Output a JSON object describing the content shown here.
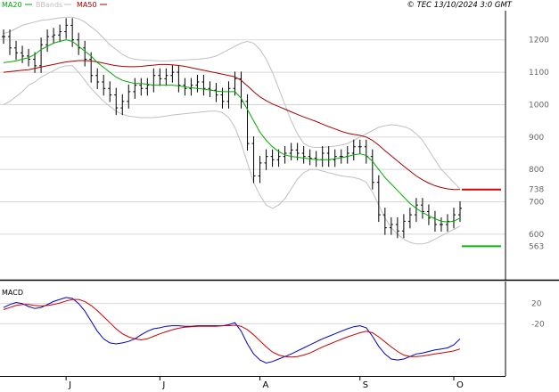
{
  "legend": {
    "ma20": "MA20",
    "bbands": "BBands",
    "ma50": "MA50",
    "copyright": "© TEC 13/10/2024 3:0 GMT"
  },
  "macd_label": "MACD",
  "colors": {
    "ma20": "#00aa00",
    "bbands": "#c0c0c0",
    "ma50": "#aa0000",
    "price": "#000000",
    "macd": "#0000cc",
    "signal": "#cc0000",
    "grid": "#d8d8d8",
    "axis_text": "#666666",
    "marker_red": "#dd0000",
    "marker_green": "#00bb00"
  },
  "chart_data": [
    {
      "type": "line",
      "ylim": [
        465,
        1290
      ],
      "y_ticks": [
        "1200",
        "1100",
        "1000",
        "900",
        "800",
        "700",
        "600"
      ],
      "y_tick_values": [
        1200,
        1100,
        1000,
        900,
        800,
        700,
        600
      ],
      "x_ticks": [
        "J",
        "J",
        "A",
        "S",
        "O"
      ],
      "x_tick_index": [
        10,
        25,
        41,
        57,
        72
      ],
      "series": [
        {
          "key": "price",
          "values": [
            1210,
            1175,
            1160,
            1150,
            1140,
            1120,
            1185,
            1210,
            1215,
            1225,
            1245,
            1200,
            1175,
            1140,
            1090,
            1070,
            1050,
            1030,
            990,
            1010,
            1040,
            1060,
            1050,
            1060,
            1090,
            1080,
            1090,
            1100,
            1060,
            1050,
            1060,
            1070,
            1050,
            1045,
            1030,
            1010,
            1050,
            1080,
            1010,
            880,
            780,
            820,
            840,
            830,
            840,
            850,
            860,
            850,
            840,
            835,
            830,
            850,
            830,
            840,
            840,
            850,
            870,
            870,
            840,
            760,
            660,
            620,
            630,
            610,
            640,
            660,
            690,
            670,
            650,
            630,
            630,
            640,
            660,
            680
          ]
        },
        {
          "key": "ma20",
          "values": [
            1130,
            1132,
            1135,
            1140,
            1145,
            1155,
            1170,
            1180,
            1190,
            1195,
            1200,
            1195,
            1180,
            1165,
            1150,
            1130,
            1115,
            1100,
            1085,
            1075,
            1070,
            1065,
            1065,
            1063,
            1060,
            1060,
            1060,
            1060,
            1058,
            1055,
            1052,
            1050,
            1048,
            1045,
            1042,
            1040,
            1040,
            1040,
            1020,
            985,
            950,
            915,
            890,
            870,
            855,
            845,
            840,
            838,
            835,
            833,
            830,
            830,
            830,
            833,
            836,
            840,
            845,
            848,
            843,
            825,
            800,
            775,
            755,
            735,
            715,
            695,
            680,
            667,
            657,
            648,
            640,
            638,
            640,
            650
          ]
        },
        {
          "key": "ma50",
          "values": [
            1100,
            1102,
            1104,
            1106,
            1108,
            1112,
            1116,
            1120,
            1124,
            1128,
            1132,
            1134,
            1136,
            1136,
            1135,
            1132,
            1128,
            1124,
            1120,
            1118,
            1117,
            1117,
            1118,
            1120,
            1122,
            1124,
            1124,
            1123,
            1121,
            1118,
            1114,
            1110,
            1106,
            1102,
            1098,
            1094,
            1090,
            1086,
            1075,
            1058,
            1040,
            1024,
            1012,
            1002,
            994,
            986,
            978,
            970,
            962,
            955,
            948,
            940,
            932,
            925,
            918,
            912,
            908,
            905,
            900,
            890,
            875,
            858,
            842,
            826,
            810,
            795,
            780,
            768,
            758,
            750,
            744,
            740,
            738,
            738
          ]
        },
        {
          "key": "bb_upper",
          "values": [
            1220,
            1225,
            1235,
            1245,
            1250,
            1255,
            1260,
            1262,
            1265,
            1268,
            1270,
            1270,
            1265,
            1255,
            1240,
            1225,
            1205,
            1185,
            1170,
            1155,
            1145,
            1140,
            1138,
            1137,
            1136,
            1135,
            1135,
            1136,
            1137,
            1138,
            1139,
            1140,
            1142,
            1145,
            1150,
            1160,
            1170,
            1180,
            1190,
            1195,
            1190,
            1170,
            1140,
            1100,
            1050,
            1000,
            950,
            910,
            880,
            870,
            868,
            868,
            870,
            872,
            875,
            880,
            890,
            900,
            910,
            920,
            930,
            935,
            938,
            936,
            932,
            925,
            910,
            890,
            860,
            830,
            800,
            780,
            760,
            740
          ]
        },
        {
          "key": "bb_lower",
          "values": [
            1000,
            1010,
            1025,
            1040,
            1060,
            1070,
            1085,
            1095,
            1105,
            1115,
            1120,
            1120,
            1100,
            1075,
            1050,
            1030,
            1010,
            995,
            980,
            970,
            965,
            962,
            960,
            960,
            960,
            962,
            965,
            968,
            970,
            972,
            974,
            976,
            978,
            980,
            980,
            975,
            960,
            930,
            880,
            820,
            760,
            720,
            690,
            680,
            690,
            710,
            740,
            770,
            790,
            800,
            800,
            795,
            790,
            785,
            780,
            778,
            775,
            770,
            760,
            730,
            690,
            650,
            620,
            600,
            585,
            575,
            570,
            570,
            575,
            585,
            595,
            605,
            615,
            625
          ]
        },
        {
          "key": "macd",
          "values": [
            12,
            18,
            22,
            20,
            14,
            10,
            12,
            18,
            24,
            28,
            32,
            30,
            20,
            5,
            -15,
            -35,
            -50,
            -58,
            -60,
            -58,
            -55,
            -50,
            -42,
            -35,
            -30,
            -28,
            -25,
            -24,
            -24,
            -25,
            -25,
            -24,
            -24,
            -24,
            -24,
            -24,
            -22,
            -18,
            -35,
            -60,
            -80,
            -92,
            -98,
            -95,
            -90,
            -85,
            -80,
            -74,
            -68,
            -62,
            -56,
            -50,
            -45,
            -40,
            -35,
            -30,
            -26,
            -24,
            -28,
            -45,
            -65,
            -80,
            -90,
            -92,
            -90,
            -85,
            -80,
            -78,
            -75,
            -72,
            -70,
            -68,
            -62,
            -50
          ]
        },
        {
          "key": "signal",
          "values": [
            8,
            12,
            16,
            18,
            18,
            16,
            15,
            16,
            18,
            21,
            25,
            28,
            28,
            24,
            16,
            6,
            -6,
            -18,
            -30,
            -40,
            -46,
            -50,
            -52,
            -50,
            -45,
            -40,
            -36,
            -32,
            -29,
            -27,
            -26,
            -25,
            -25,
            -25,
            -25,
            -24,
            -24,
            -23,
            -25,
            -32,
            -42,
            -54,
            -66,
            -76,
            -82,
            -85,
            -86,
            -85,
            -82,
            -78,
            -72,
            -66,
            -61,
            -56,
            -51,
            -46,
            -42,
            -38,
            -35,
            -38,
            -46,
            -56,
            -66,
            -75,
            -82,
            -85,
            -85,
            -84,
            -82,
            -80,
            -78,
            -76,
            -74,
            -70
          ]
        }
      ]
    },
    {
      "type": "line",
      "ylim": [
        -120,
        60
      ],
      "y_ticks": [
        "20",
        "-20"
      ],
      "y_tick_values": [
        20,
        -20
      ]
    }
  ],
  "markers": [
    {
      "value": 738,
      "label": "738",
      "color_key": "marker_red"
    },
    {
      "value": 563,
      "label": "563",
      "color_key": "marker_green"
    }
  ]
}
